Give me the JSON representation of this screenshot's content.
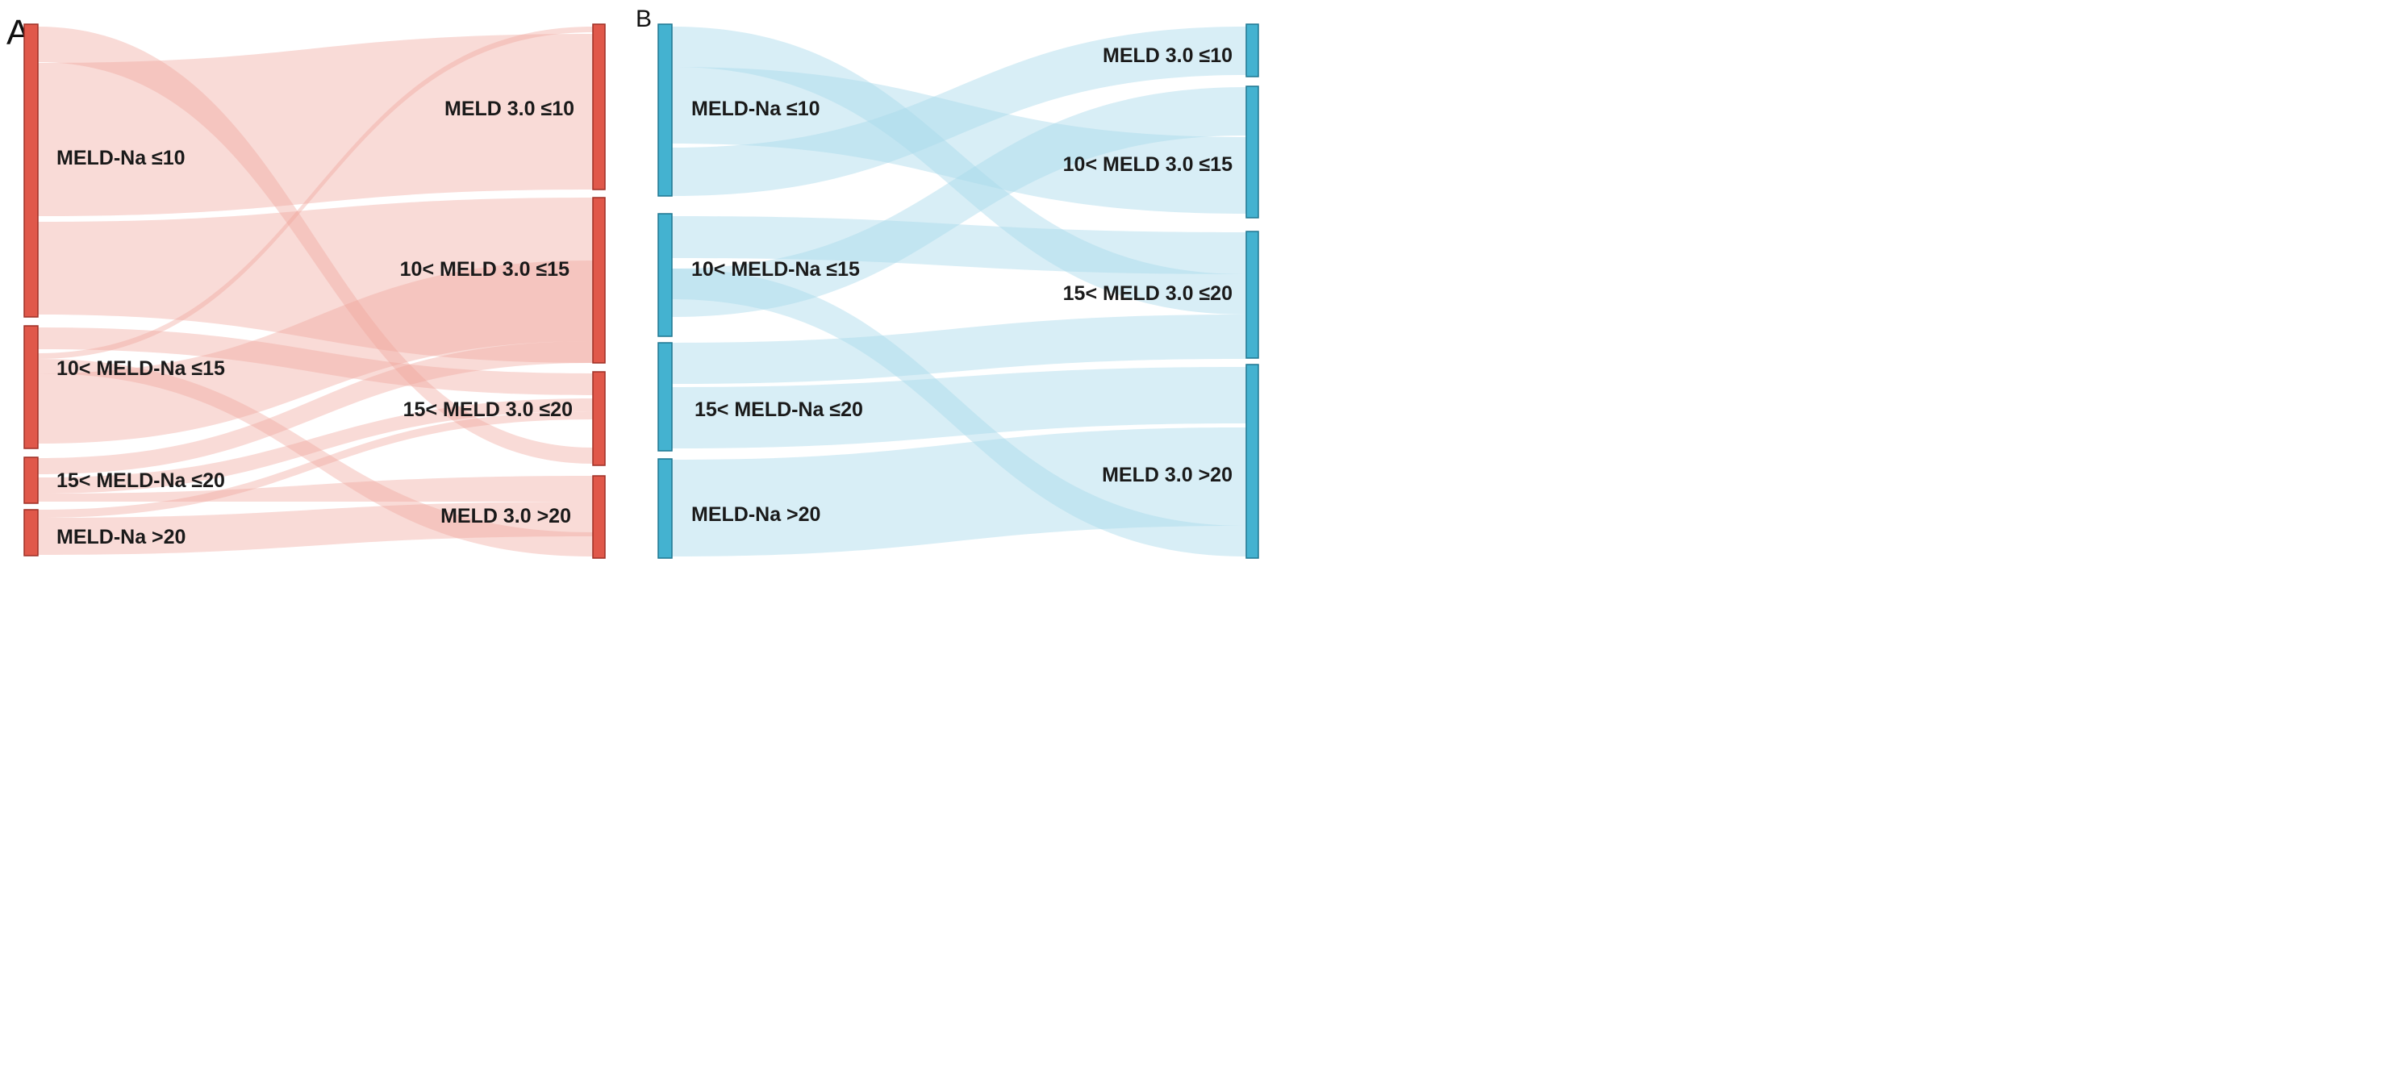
{
  "panels": [
    {
      "id": "A",
      "panel_label": "A",
      "node_color": "#e0584a",
      "node_stroke": "#9e2f25",
      "link_color": "#f0a49a",
      "left_nodes": [
        {
          "label": "MELD-Na ≤10"
        },
        {
          "label": "10< MELD-Na ≤15"
        },
        {
          "label": "15< MELD-Na ≤20"
        },
        {
          "label": "MELD-Na >20"
        }
      ],
      "right_nodes": [
        {
          "label": "MELD 3.0 ≤10"
        },
        {
          "label": "10< MELD 3.0 ≤15"
        },
        {
          "label": "15< MELD 3.0 ≤20"
        },
        {
          "label": "MELD 3.0 >20"
        }
      ]
    },
    {
      "id": "B",
      "panel_label": "B",
      "node_color": "#44b2d0",
      "node_stroke": "#1f7691",
      "link_color": "#a9d9ea",
      "left_nodes": [
        {
          "label": "MELD-Na ≤10"
        },
        {
          "label": "10< MELD-Na ≤15"
        },
        {
          "label": "15< MELD-Na ≤20"
        },
        {
          "label": "MELD-Na >20"
        }
      ],
      "right_nodes": [
        {
          "label": "MELD 3.0 ≤10"
        },
        {
          "label": "10< MELD 3.0 ≤15"
        },
        {
          "label": "15< MELD 3.0 ≤20"
        },
        {
          "label": "MELD 3.0 >20"
        }
      ]
    }
  ]
}
